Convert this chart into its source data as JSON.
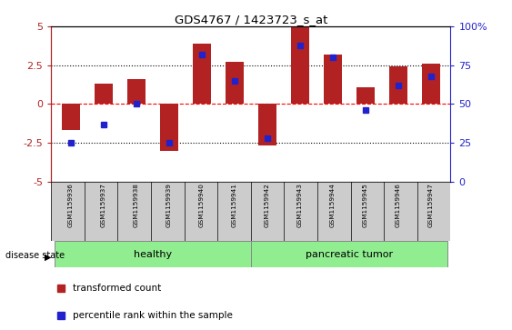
{
  "title": "GDS4767 / 1423723_s_at",
  "samples": [
    "GSM1159936",
    "GSM1159937",
    "GSM1159938",
    "GSM1159939",
    "GSM1159940",
    "GSM1159941",
    "GSM1159942",
    "GSM1159943",
    "GSM1159944",
    "GSM1159945",
    "GSM1159946",
    "GSM1159947"
  ],
  "red_values": [
    -1.7,
    1.3,
    1.6,
    -3.0,
    3.9,
    2.7,
    -2.7,
    5.0,
    3.2,
    1.1,
    2.4,
    2.6
  ],
  "blue_percentiles": [
    25,
    37,
    50,
    25,
    82,
    65,
    28,
    88,
    80,
    46,
    62,
    68
  ],
  "ylim": [
    -5,
    5
  ],
  "yticks_left": [
    -5,
    -2.5,
    0,
    2.5,
    5
  ],
  "yticks_right": [
    0,
    25,
    50,
    75,
    100
  ],
  "hlines": [
    -2.5,
    0,
    2.5
  ],
  "hline_styles": [
    "dotted",
    "dashed",
    "dotted"
  ],
  "hline_colors": [
    "black",
    "red",
    "black"
  ],
  "bg_color": "#ffffff",
  "bar_color": "#B22222",
  "dot_color": "#2222CC",
  "left_axis_color": "#B22222",
  "right_axis_color": "#2222CC",
  "disease_state_label": "disease state",
  "legend_items": [
    "transformed count",
    "percentile rank within the sample"
  ],
  "healthy_range": [
    0,
    5
  ],
  "tumor_range": [
    6,
    11
  ],
  "group_color": "#90EE90"
}
